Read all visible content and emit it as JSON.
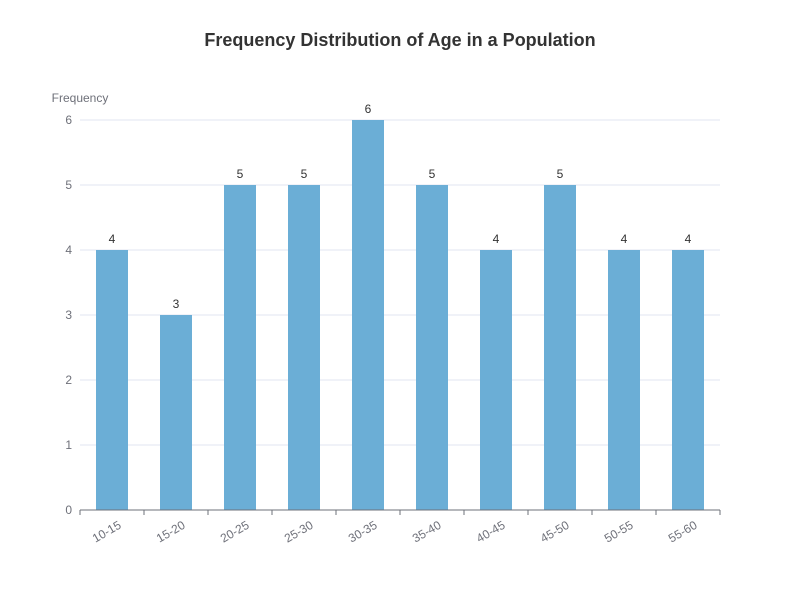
{
  "chart_data": {
    "type": "bar",
    "title": "Frequency Distribution of Age in a Population",
    "xlabel": "",
    "ylabel": "Frequency",
    "categories": [
      "10-15",
      "15-20",
      "20-25",
      "25-30",
      "30-35",
      "35-40",
      "40-45",
      "45-50",
      "50-55",
      "55-60"
    ],
    "values": [
      4,
      3,
      5,
      5,
      6,
      5,
      4,
      5,
      4,
      4
    ],
    "ylim": [
      0,
      6
    ],
    "yticks": [
      0,
      1,
      2,
      3,
      4,
      5,
      6
    ],
    "grid": true,
    "data_labels": true,
    "bar_color": "#6baed6",
    "grid_color": "#e0e6f1",
    "axis_color": "#6e7079"
  }
}
